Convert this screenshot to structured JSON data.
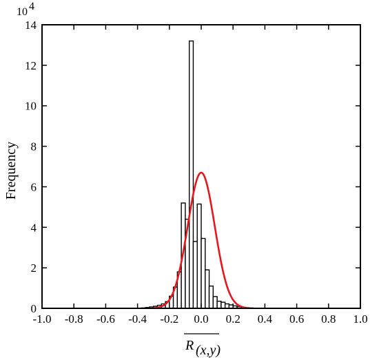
{
  "chart_data": {
    "type": "bar",
    "title": "",
    "ylabel": "Frequency",
    "xlabel_main": "R",
    "xlabel_subscript": "(x,y)",
    "y_multiplier_base": "10",
    "y_multiplier_exp": "4",
    "xlim": [
      -1.0,
      1.0
    ],
    "ylim": [
      0,
      14
    ],
    "x_ticks": [
      {
        "value": -1.0,
        "label": "-1.0"
      },
      {
        "value": -0.8,
        "label": "-0.8"
      },
      {
        "value": -0.6,
        "label": "-0.6"
      },
      {
        "value": -0.4,
        "label": "-0.4"
      },
      {
        "value": -0.2,
        "label": "-0.2"
      },
      {
        "value": 0.0,
        "label": "0.0"
      },
      {
        "value": 0.2,
        "label": "0.2"
      },
      {
        "value": 0.4,
        "label": "0.4"
      },
      {
        "value": 0.6,
        "label": "0.6"
      },
      {
        "value": 0.8,
        "label": "0.8"
      },
      {
        "value": 1.0,
        "label": "1.0"
      }
    ],
    "y_ticks": [
      {
        "value": 0,
        "label": "0"
      },
      {
        "value": 2,
        "label": "2"
      },
      {
        "value": 4,
        "label": "4"
      },
      {
        "value": 6,
        "label": "6"
      },
      {
        "value": 8,
        "label": "8"
      },
      {
        "value": 10,
        "label": "10"
      },
      {
        "value": 12,
        "label": "12"
      },
      {
        "value": 14,
        "label": "14"
      }
    ],
    "bin_width": 0.025,
    "bin_starts": [
      -0.375,
      -0.35,
      -0.325,
      -0.3,
      -0.275,
      -0.25,
      -0.225,
      -0.2,
      -0.175,
      -0.15,
      -0.125,
      -0.1,
      -0.075,
      -0.05,
      -0.025,
      0.0,
      0.025,
      0.05,
      0.075,
      0.1,
      0.125,
      0.15,
      0.175,
      0.2,
      0.225,
      0.25,
      0.275,
      0.3,
      0.325,
      0.35,
      0.375,
      0.4,
      0.425,
      0.45,
      0.475
    ],
    "frequencies": [
      0.02,
      0.04,
      0.07,
      0.1,
      0.15,
      0.22,
      0.33,
      0.6,
      1.05,
      1.8,
      5.2,
      4.4,
      13.2,
      3.3,
      5.15,
      3.45,
      1.9,
      1.1,
      0.58,
      0.35,
      0.3,
      0.22,
      0.17,
      0.12,
      0.08,
      0.05,
      0.03,
      0.02,
      0.01,
      0.01,
      0.01,
      0.01,
      0.0,
      0.0,
      0.0
    ],
    "fit_curve": {
      "type": "gaussian",
      "color": "#e8161b",
      "mean": 0.0,
      "sigma": 0.085,
      "peak": 6.7,
      "x_range": [
        -0.3,
        0.3
      ]
    },
    "bar_fill": "#ffffff",
    "bar_stroke": "#000000",
    "grid": false
  }
}
